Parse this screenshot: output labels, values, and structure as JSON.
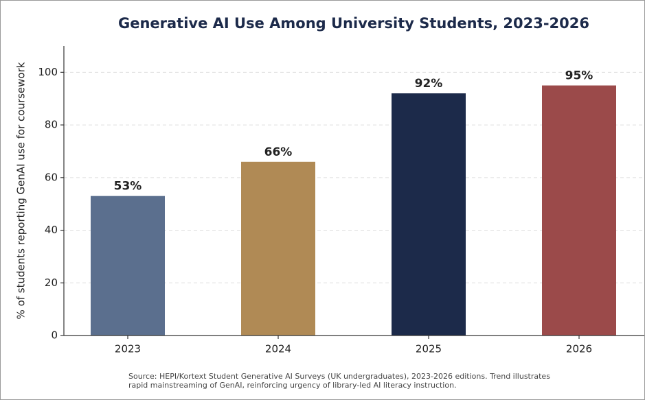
{
  "chart_data": {
    "type": "bar",
    "title": "Generative AI Use Among University Students, 2023-2026",
    "y_label": "% of students reporting GenAI use for coursework",
    "categories": [
      "2023",
      "2024",
      "2025",
      "2026"
    ],
    "values": [
      53,
      66,
      92,
      95
    ],
    "value_labels": [
      "53%",
      "66%",
      "92%",
      "95%"
    ],
    "colors": [
      "#5b6f8e",
      "#b08a55",
      "#1c2a4a",
      "#9b4a4a"
    ],
    "ylim": [
      0,
      110
    ],
    "yticks": [
      0,
      20,
      40,
      60,
      80,
      100
    ],
    "grid": true,
    "source": [
      "Source: HEPI/Kortext Student Generative AI Surveys (UK undergraduates), 2023-2026 editions. Trend illustrates",
      "rapid mainstreaming of GenAI, reinforcing urgency of library-led AI literacy instruction."
    ]
  }
}
